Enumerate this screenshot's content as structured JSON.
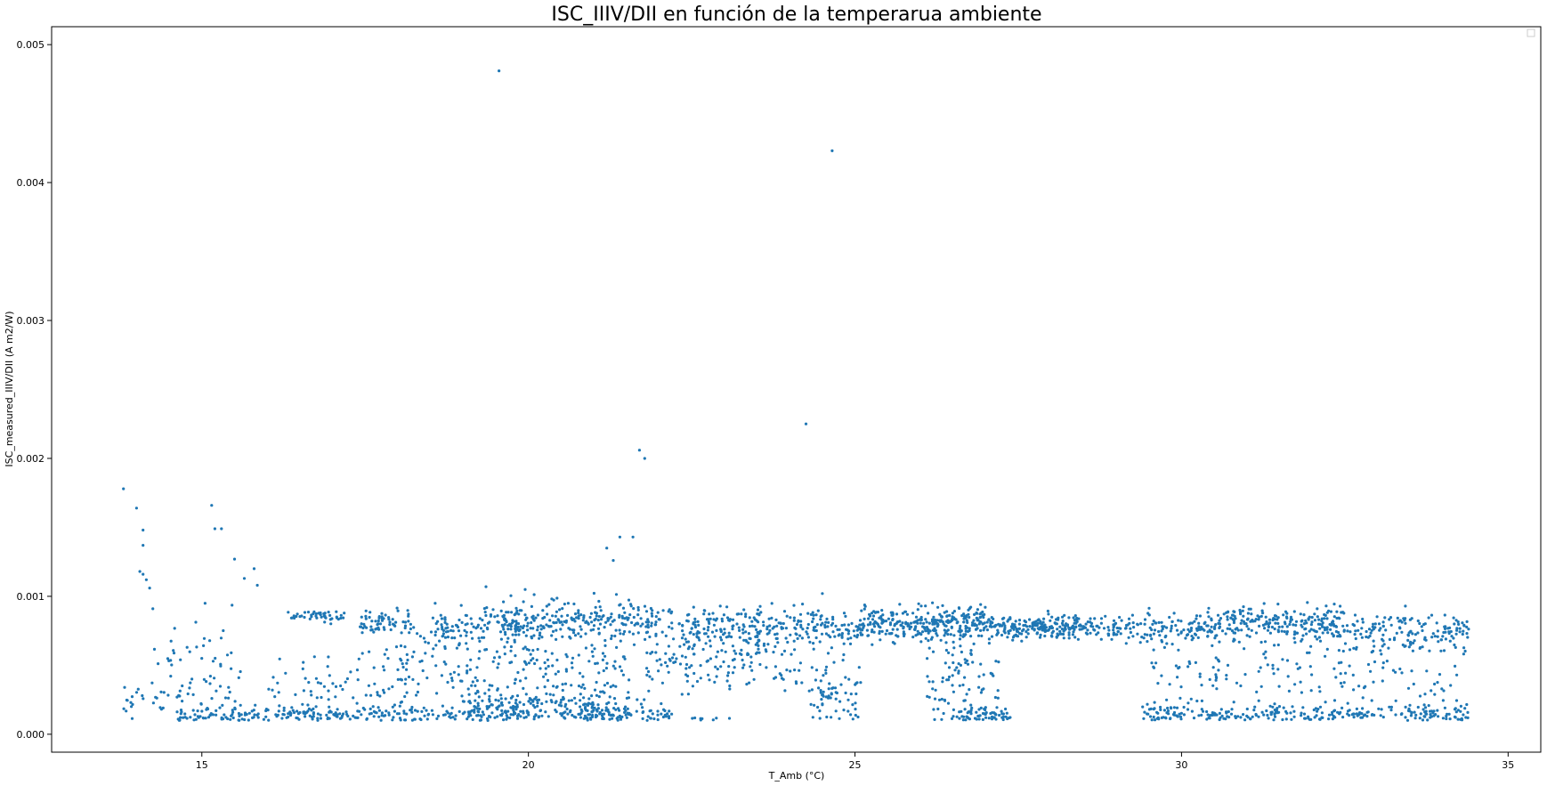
{
  "chart_data": {
    "type": "scatter",
    "title": "ISC_IIIV/DII en función de la temperarua ambiente",
    "xlabel": "T_Amb (°C)",
    "ylabel": "ISC_measured_IIIV/DII (A m2/W)",
    "xlim": [
      12.7,
      35.5
    ],
    "ylim": [
      -0.00013,
      0.00513
    ],
    "xticks": [
      15,
      20,
      25,
      30,
      35
    ],
    "xtick_labels": [
      "15",
      "20",
      "25",
      "30",
      "35"
    ],
    "yticks": [
      0.0,
      0.001,
      0.002,
      0.003,
      0.004,
      0.005
    ],
    "ytick_labels": [
      "0.000",
      "0.001",
      "0.002",
      "0.003",
      "0.004",
      "0.005"
    ],
    "grid": false,
    "legend": "top-right (empty)",
    "colors": {
      "series": "#1f77b4"
    },
    "marker": "circle",
    "outliers": [
      [
        19.55,
        0.00481
      ],
      [
        24.65,
        0.00423
      ],
      [
        24.25,
        0.00225
      ],
      [
        21.7,
        0.00206
      ],
      [
        21.78,
        0.002
      ],
      [
        13.8,
        0.00178
      ],
      [
        15.15,
        0.00166
      ],
      [
        14.0,
        0.00164
      ],
      [
        15.2,
        0.00149
      ],
      [
        15.3,
        0.00149
      ],
      [
        14.1,
        0.00148
      ],
      [
        14.1,
        0.00137
      ],
      [
        21.2,
        0.00135
      ],
      [
        21.4,
        0.00143
      ],
      [
        21.6,
        0.00143
      ],
      [
        21.3,
        0.00126
      ],
      [
        15.5,
        0.00127
      ],
      [
        15.8,
        0.0012
      ],
      [
        14.05,
        0.00118
      ],
      [
        14.1,
        0.00116
      ],
      [
        14.15,
        0.00112
      ],
      [
        15.65,
        0.00113
      ],
      [
        15.85,
        0.00108
      ],
      [
        14.2,
        0.00106
      ],
      [
        19.35,
        0.00107
      ],
      [
        19.95,
        0.00105
      ],
      [
        24.5,
        0.00102
      ],
      [
        14.25,
        0.00091
      ],
      [
        15.05,
        0.00095
      ]
    ],
    "clusters": [
      {
        "x": [
          16.3,
          17.2
        ],
        "y": 0.00086,
        "spread": 2e-05,
        "n": 45,
        "seed": 11
      },
      {
        "x": [
          17.4,
          18.2
        ],
        "y": 0.00082,
        "spread": 4e-05,
        "n": 60,
        "seed": 12
      },
      {
        "x": [
          18.5,
          20.0
        ],
        "y": 0.00077,
        "spread": 7e-05,
        "n": 110,
        "seed": 13
      },
      {
        "x": [
          19.6,
          22.2
        ],
        "y": 0.00082,
        "spread": 7e-05,
        "n": 240,
        "seed": 14
      },
      {
        "x": [
          22.3,
          25.0
        ],
        "y": 0.00078,
        "spread": 7e-05,
        "n": 240,
        "seed": 15
      },
      {
        "x": [
          25.0,
          27.0
        ],
        "y": 0.0008,
        "spread": 6e-05,
        "n": 320,
        "seed": 16
      },
      {
        "x": [
          27.0,
          28.5
        ],
        "y": 0.00078,
        "spread": 4e-05,
        "n": 220,
        "seed": 17
      },
      {
        "x": [
          28.5,
          30.4
        ],
        "y": 0.00076,
        "spread": 5e-05,
        "n": 150,
        "seed": 18
      },
      {
        "x": [
          30.4,
          32.5
        ],
        "y": 0.0008,
        "spread": 6e-05,
        "n": 240,
        "seed": 19
      },
      {
        "x": [
          32.5,
          34.4
        ],
        "y": 0.00074,
        "spread": 6e-05,
        "n": 130,
        "seed": 20
      },
      {
        "x": [
          14.2,
          15.7
        ],
        "y": 0.00045,
        "spread": 0.00019,
        "n": 60,
        "seed": 21
      },
      {
        "x": [
          13.8,
          14.9
        ],
        "y": 0.00027,
        "spread": 5e-05,
        "n": 25,
        "seed": 22
      },
      {
        "x": [
          14.6,
          22.2
        ],
        "y": 0.00014,
        "spread": 3e-05,
        "n": 380,
        "seed": 23
      },
      {
        "x": [
          19.0,
          21.8
        ],
        "y": 0.00022,
        "spread": 6e-05,
        "n": 160,
        "seed": 24
      },
      {
        "x": [
          16.0,
          18.2
        ],
        "y": 0.00033,
        "spread": 0.00012,
        "n": 80,
        "seed": 25
      },
      {
        "x": [
          18.0,
          21.5
        ],
        "y": 0.0005,
        "spread": 0.00017,
        "n": 220,
        "seed": 26
      },
      {
        "x": [
          21.8,
          24.2
        ],
        "y": 0.00055,
        "spread": 0.00012,
        "n": 160,
        "seed": 27
      },
      {
        "x": [
          24.3,
          25.1
        ],
        "y": 0.0003,
        "spread": 0.00015,
        "n": 70,
        "seed": 28
      },
      {
        "x": [
          26.1,
          27.2
        ],
        "y": 0.00042,
        "spread": 0.00022,
        "n": 90,
        "seed": 29
      },
      {
        "x": [
          26.5,
          27.4
        ],
        "y": 0.00014,
        "spread": 3e-05,
        "n": 60,
        "seed": 30
      },
      {
        "x": [
          29.4,
          34.4
        ],
        "y": 0.00015,
        "spread": 4e-05,
        "n": 260,
        "seed": 31
      },
      {
        "x": [
          29.5,
          34.4
        ],
        "y": 0.00048,
        "spread": 0.00018,
        "n": 200,
        "seed": 32
      },
      {
        "x": [
          22.5,
          23.1
        ],
        "y": 0.00011,
        "spread": 1e-05,
        "n": 8,
        "seed": 33
      }
    ]
  }
}
